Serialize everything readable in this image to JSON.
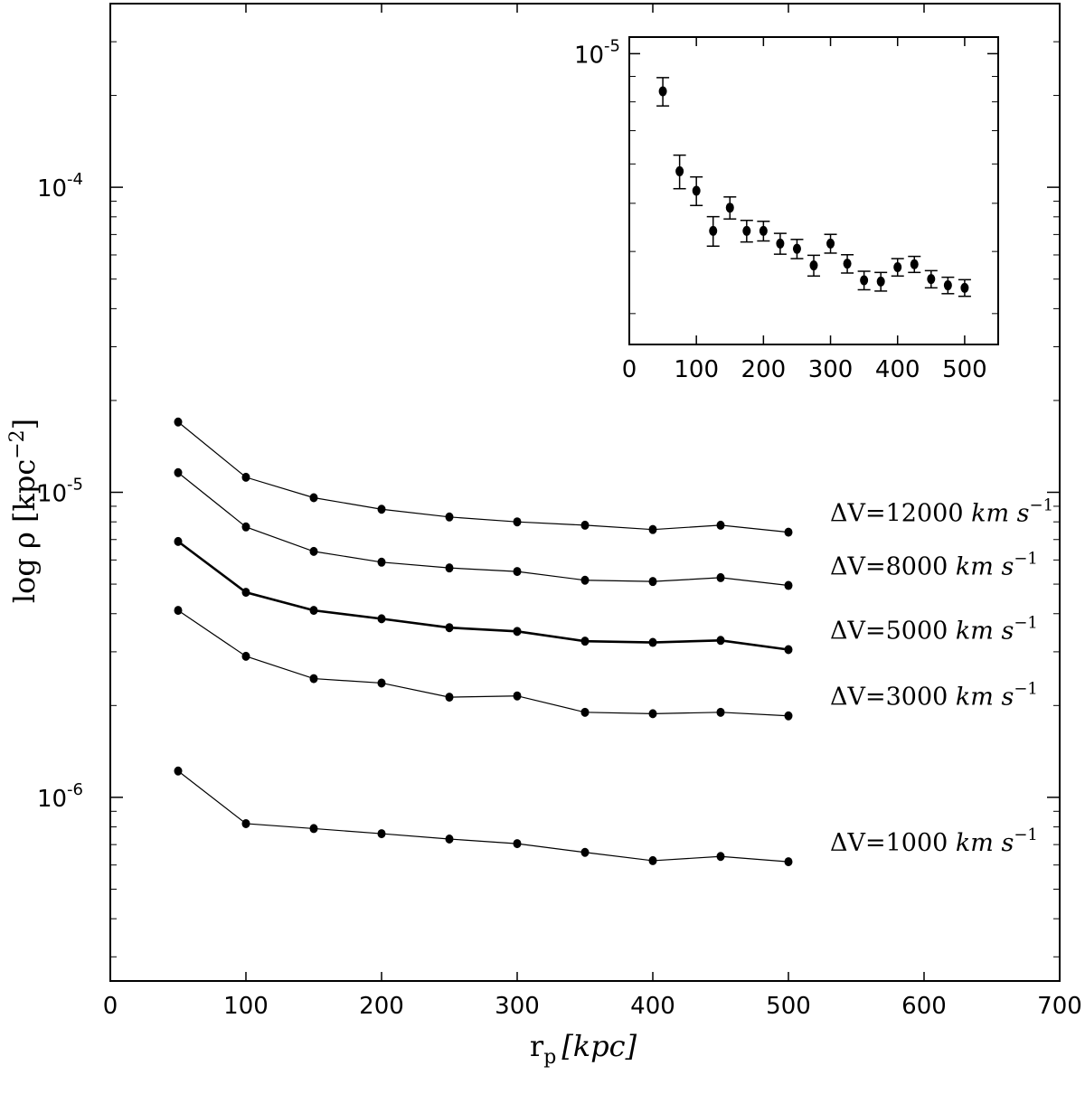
{
  "chart_data": [
    {
      "type": "line",
      "x": [
        50,
        100,
        150,
        200,
        250,
        300,
        350,
        400,
        450,
        500
      ],
      "xlabel": "r",
      "xlabel_subscript": "p",
      "xlabel_unit": "[kpc]",
      "ylabel": "log ρ [kpc",
      "ylabel_exponent": "−2",
      "ylabel_close": "]",
      "xlim": [
        0,
        700
      ],
      "ylim": [
        2.5e-07,
        0.0004
      ],
      "yscale": "log",
      "x_ticks": [
        "0",
        "100",
        "200",
        "300",
        "400",
        "500",
        "600",
        "700"
      ],
      "y_ticks": [
        {
          "base": "10",
          "exp": "-6",
          "value": 1e-06
        },
        {
          "base": "10",
          "exp": "-5",
          "value": 1e-05
        },
        {
          "base": "10",
          "exp": "-4",
          "value": 0.0001
        }
      ],
      "series": [
        {
          "name": "ΔV=12000 km s⁻¹",
          "label_pre": "ΔV=12000 ",
          "label_unit": "km s",
          "label_exp": "−1",
          "bold": false,
          "values": [
            1.7e-05,
            1.12e-05,
            9.6e-06,
            8.8e-06,
            8.3e-06,
            8e-06,
            7.8e-06,
            7.55e-06,
            7.8e-06,
            7.4e-06
          ]
        },
        {
          "name": "ΔV=8000 km s⁻¹",
          "label_pre": "ΔV=8000 ",
          "label_unit": "km s",
          "label_exp": "−1",
          "bold": false,
          "values": [
            1.16e-05,
            7.7e-06,
            6.4e-06,
            5.9e-06,
            5.65e-06,
            5.5e-06,
            5.15e-06,
            5.1e-06,
            5.25e-06,
            4.95e-06
          ]
        },
        {
          "name": "ΔV=5000 km s⁻¹",
          "label_pre": "ΔV=5000 ",
          "label_unit": "km s",
          "label_exp": "−1",
          "bold": true,
          "values": [
            6.9e-06,
            4.7e-06,
            4.1e-06,
            3.85e-06,
            3.6e-06,
            3.5e-06,
            3.25e-06,
            3.22e-06,
            3.27e-06,
            3.05e-06
          ]
        },
        {
          "name": "ΔV=3000 km s⁻¹",
          "label_pre": "ΔV=3000 ",
          "label_unit": "km s",
          "label_exp": "−1",
          "bold": false,
          "values": [
            4.1e-06,
            2.9e-06,
            2.45e-06,
            2.37e-06,
            2.13e-06,
            2.15e-06,
            1.9e-06,
            1.88e-06,
            1.9e-06,
            1.85e-06
          ]
        },
        {
          "name": "ΔV=1000 km s⁻¹",
          "label_pre": "ΔV=1000 ",
          "label_unit": "km  s",
          "label_exp": "−1",
          "bold": false,
          "values": [
            1.22e-06,
            8.2e-07,
            7.9e-07,
            7.6e-07,
            7.3e-07,
            7.05e-07,
            6.6e-07,
            6.2e-07,
            6.4e-07,
            6.15e-07
          ]
        }
      ]
    },
    {
      "type": "scatter",
      "inset": true,
      "yscale": "log",
      "xlim": [
        0,
        550
      ],
      "ylim": [
        2.6e-06,
        1.08e-05
      ],
      "x_ticks": [
        "0",
        "100",
        "200",
        "300",
        "400",
        "500"
      ],
      "y_ticks": [
        {
          "base": "10",
          "exp": "-5",
          "value": 1e-05
        }
      ],
      "x": [
        50,
        75,
        100,
        125,
        150,
        175,
        200,
        225,
        250,
        275,
        300,
        325,
        350,
        375,
        400,
        425,
        450,
        475,
        500
      ],
      "values": [
        8.4e-06,
        5.8e-06,
        5.3e-06,
        4.4e-06,
        4.9e-06,
        4.4e-06,
        4.4e-06,
        4.15e-06,
        4.05e-06,
        3.75e-06,
        4.15e-06,
        3.78e-06,
        3.5e-06,
        3.48e-06,
        3.72e-06,
        3.77e-06,
        3.52e-06,
        3.42e-06,
        3.38e-06
      ],
      "err": [
        5.5e-07,
        4.5e-07,
        3.5e-07,
        3e-07,
        2.5e-07,
        2.2e-07,
        2e-07,
        2e-07,
        1.8e-07,
        1.8e-07,
        1.8e-07,
        1.6e-07,
        1.5e-07,
        1.5e-07,
        1.5e-07,
        1.4e-07,
        1.4e-07,
        1.3e-07,
        1.3e-07
      ]
    }
  ]
}
